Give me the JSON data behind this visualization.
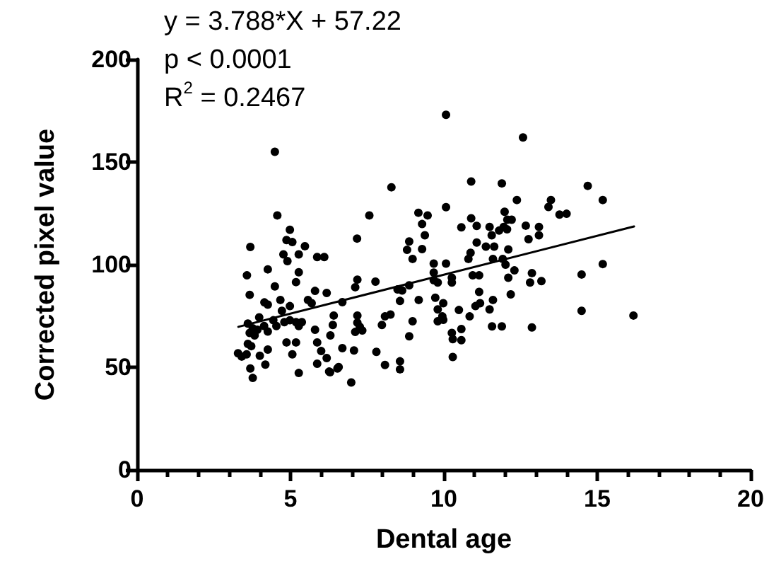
{
  "chart_data": {
    "type": "scatter",
    "xlabel": "Dental age",
    "ylabel": "Corrected pixel value",
    "annotations": [
      "y =  3.788*X + 57.22",
      "p < 0.0001",
      "R$^{2}$ = 0.2467"
    ],
    "xlim": [
      0,
      20
    ],
    "xticks": [
      0,
      5,
      10,
      15,
      20
    ],
    "ylim": [
      0,
      200
    ],
    "yticks": [
      0,
      50,
      100,
      150,
      200
    ],
    "grid": false,
    "marker": "circle",
    "series": [
      {
        "type": "scatter",
        "color": "#000000",
        "x": [
          4.49,
          4.57,
          4.98,
          4.87,
          5.06,
          3.69,
          5.47,
          4.77,
          5.27,
          4.9,
          5.87,
          6.1,
          4.26,
          3.58,
          5.27,
          5.18,
          4.49,
          3.67,
          5.8,
          6.18,
          4.15,
          4.26,
          4.67,
          5.57,
          5.69,
          4.98,
          4.72,
          3.98,
          3.61,
          3.77,
          3.92,
          4.14,
          4.26,
          4.44,
          4.54,
          4.8,
          4.98,
          5.18,
          5.37,
          5.27,
          6.41,
          6.38,
          5.8,
          6.3,
          3.67,
          3.83,
          3.61,
          3.72,
          3.29,
          3.41,
          3.57,
          4.0,
          4.26,
          4.87,
          5.18,
          5.06,
          5.87,
          6.0,
          6.18,
          3.69,
          3.77,
          4.18,
          5.27,
          5.87,
          6.29,
          6.53,
          10.07,
          12.58,
          8.29,
          10.89,
          11.89,
          12.38,
          7.57,
          10.07,
          9.17,
          9.47,
          9.29,
          9.38,
          10.57,
          10.89,
          11.07,
          11.98,
          12.07,
          11.95,
          12.21,
          12.06,
          12.67,
          12.76,
          11.49,
          11.56,
          11.37,
          11.64,
          11.8,
          8.87,
          8.8,
          8.98,
          9.29,
          7.17,
          10.8,
          10.87,
          11.07,
          9.67,
          10.07,
          11.6,
          11.92,
          12.1,
          12.01,
          12.3,
          12.1,
          12.87,
          12.81,
          9.67,
          9.67,
          9.8,
          10.26,
          10.26,
          10.94,
          11.15,
          11.15,
          7.18,
          7.11,
          7.77,
          8.49,
          8.64,
          8.87,
          8.57,
          9.18,
          9.72,
          9.98,
          9.8,
          9.95,
          9.8,
          9.98,
          10.49,
          10.84,
          11.03,
          11.18,
          11.49,
          11.6,
          12.18,
          11.57,
          11.89,
          12.87,
          10.26,
          10.29,
          10.57,
          10.57,
          10.29,
          8.87,
          8.98,
          7.98,
          8.08,
          8.26,
          7.8,
          8.08,
          8.57,
          8.57,
          6.98,
          7.07,
          7.18,
          7.18,
          7.34,
          7.26,
          7.11,
          6.69,
          6.57,
          6.26,
          6.69,
          14.69,
          15.18,
          13.41,
          13.49,
          13.77,
          14.0,
          13.1,
          13.1,
          13.18,
          14.49,
          15.18,
          14.49,
          16.18
        ],
        "values": [
          155,
          124,
          117,
          112,
          111,
          108.6,
          109,
          105,
          105,
          101.7,
          103.7,
          103.7,
          97.7,
          94.8,
          96.3,
          91.5,
          89.4,
          85.3,
          87.2,
          86.2,
          81.6,
          80.5,
          82.8,
          82.8,
          81.2,
          79.8,
          77.5,
          74.3,
          71.3,
          69,
          68.3,
          70.1,
          67.4,
          72.9,
          70.1,
          72,
          72.9,
          72,
          72,
          70.1,
          75.2,
          70.6,
          68.3,
          65.5,
          66.7,
          65.5,
          61.4,
          60.3,
          56.8,
          55.2,
          56.3,
          55.6,
          58.6,
          62.1,
          62.1,
          56.3,
          62.1,
          57.9,
          54.5,
          49.4,
          44.8,
          51.3,
          47.2,
          51.7,
          47.6,
          49.4,
          173,
          162,
          137.7,
          140.5,
          139.6,
          131.5,
          124,
          128,
          125.3,
          124,
          119.8,
          114.3,
          118.2,
          122.6,
          118.9,
          125.8,
          121.9,
          118.4,
          121.9,
          117.2,
          119,
          112.4,
          118.4,
          114.3,
          108.8,
          108.8,
          116.6,
          111.3,
          107.2,
          102.8,
          107.6,
          112.7,
          102.8,
          105.8,
          110.8,
          100.5,
          100.5,
          102.8,
          102.8,
          107.4,
          100,
          97.2,
          93.6,
          95.9,
          91.3,
          96.1,
          92.4,
          91.3,
          93.6,
          91.3,
          94.8,
          94.8,
          86.7,
          92.7,
          89,
          91.7,
          87.9,
          87.4,
          89.9,
          82.3,
          82.8,
          83.9,
          81.2,
          78.2,
          74.8,
          72.4,
          73.1,
          77.9,
          74.8,
          79.8,
          81.2,
          78.2,
          82.8,
          85.5,
          69.9,
          69.9,
          69.4,
          66.7,
          63.7,
          68.6,
          63.2,
          55,
          65.1,
          72.4,
          70.6,
          74.8,
          75.7,
          57.5,
          51.1,
          52.9,
          49,
          42.6,
          58.2,
          75.2,
          71.7,
          67.9,
          69.7,
          67.2,
          59.3,
          50.1,
          47.9,
          81.7,
          138.4,
          131.5,
          128.1,
          131.5,
          124.4,
          124.8,
          118.4,
          114.3,
          92,
          95.2,
          100.3,
          77.5,
          75.2
        ]
      },
      {
        "type": "line",
        "color": "#000000",
        "line_style": "solid",
        "marker": "none",
        "x": [
          3.3,
          16.2
        ],
        "values": [
          69.7,
          118.6
        ]
      }
    ]
  }
}
